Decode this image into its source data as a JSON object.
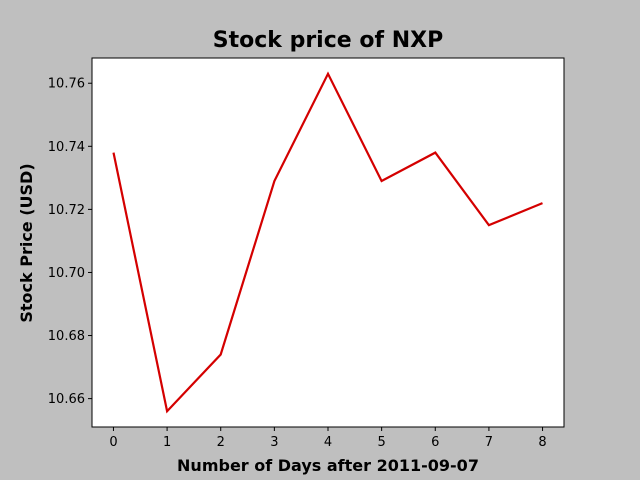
{
  "chart_data": {
    "type": "line",
    "title": "Stock price of NXP",
    "xlabel": "Number of Days after 2011-09-07",
    "ylabel": "Stock Price (USD)",
    "x": [
      0,
      1,
      2,
      3,
      4,
      5,
      6,
      7,
      8
    ],
    "series": [
      {
        "values": [
          10.738,
          10.656,
          10.674,
          10.729,
          10.763,
          10.729,
          10.738,
          10.715,
          10.722
        ]
      }
    ],
    "xlim": [
      -0.4,
      8.4
    ],
    "ylim": [
      10.651,
      10.768
    ],
    "xticks": [
      "0",
      "1",
      "2",
      "3",
      "4",
      "5",
      "6",
      "7",
      "8"
    ],
    "yticks": [
      "10.66",
      "10.68",
      "10.70",
      "10.72",
      "10.74",
      "10.76"
    ],
    "grid": false,
    "colors": {
      "line": "#d40000",
      "background": "#bfbfbf",
      "plot_area": "#ffffff"
    }
  }
}
